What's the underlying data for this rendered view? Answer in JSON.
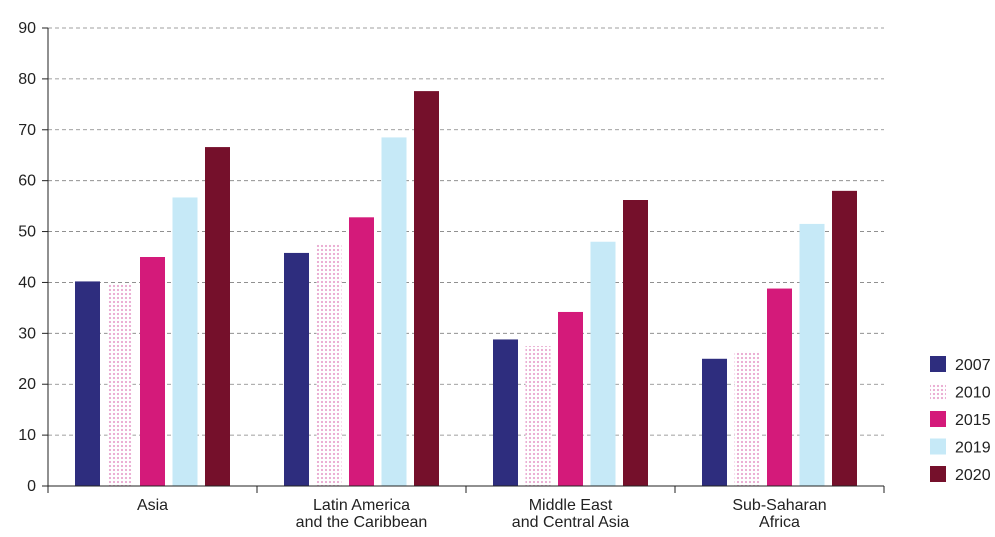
{
  "chart_data": {
    "type": "bar",
    "title": "",
    "xlabel": "",
    "ylabel": "",
    "ylim": [
      0,
      90
    ],
    "yticks": [
      0,
      10,
      20,
      30,
      40,
      50,
      60,
      70,
      80,
      90
    ],
    "grid": "horizontal dashed",
    "legend_position": "right",
    "categories": [
      [
        "Asia"
      ],
      [
        "Latin America",
        "and the Caribbean"
      ],
      [
        "Middle East",
        "and Central Asia"
      ],
      [
        "Sub-Saharan",
        "Africa"
      ]
    ],
    "series": [
      {
        "name": "2007",
        "color": "#2e2d7e",
        "pattern": "solid",
        "values": [
          40.2,
          45.8,
          28.8,
          25.0
        ]
      },
      {
        "name": "2010",
        "color": "#f3c9e3",
        "pattern": "dotted",
        "values": [
          39.8,
          47.5,
          27.5,
          26.5
        ]
      },
      {
        "name": "2015",
        "color": "#d41a7a",
        "pattern": "solid",
        "values": [
          45.0,
          52.8,
          34.2,
          38.8
        ]
      },
      {
        "name": "2019",
        "color": "#c6e9f7",
        "pattern": "solid",
        "values": [
          56.7,
          68.5,
          48.0,
          51.5
        ]
      },
      {
        "name": "2020",
        "color": "#75102b",
        "pattern": "solid",
        "values": [
          66.6,
          77.6,
          56.2,
          58.0
        ]
      }
    ]
  }
}
